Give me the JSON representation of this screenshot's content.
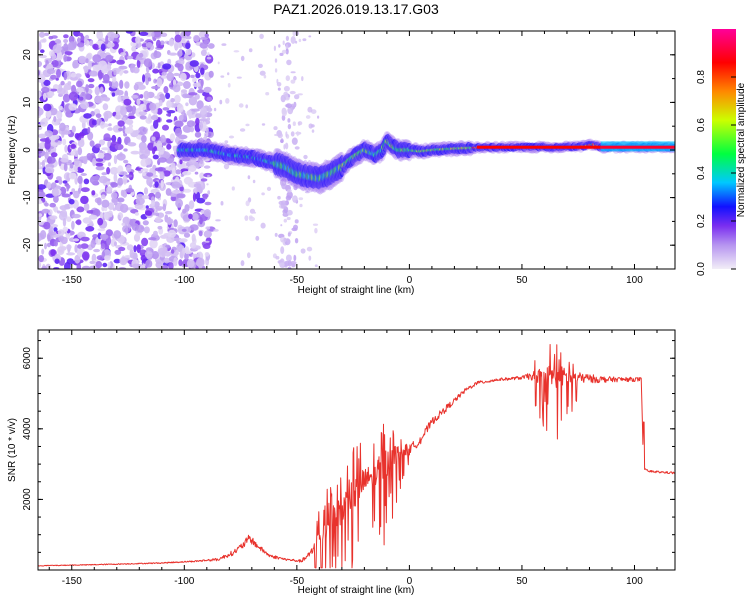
{
  "title": "PAZ1.2026.019.13.17.G03",
  "chart_data": [
    {
      "type": "heatmap",
      "name": "spectrogram",
      "xlabel": "Height of straight line (km)",
      "ylabel": "Frequency (Hz)",
      "xlim": [
        -165,
        118
      ],
      "ylim": [
        -25,
        25
      ],
      "xticks": [
        -150,
        -100,
        -50,
        0,
        50,
        100
      ],
      "yticks": [
        -20,
        -10,
        0,
        10,
        20
      ],
      "colorbar": {
        "label": "Normalized spectral amplitude",
        "range": [
          0,
          1
        ],
        "ticks": [
          0,
          0.2,
          0.4,
          0.6,
          0.8
        ],
        "tick_labels": [
          "0.0",
          "0.2",
          "0.4",
          "0.6",
          "0.8"
        ],
        "colormap": [
          "#f2eef7",
          "#7a2ef0",
          "#1111ff",
          "#00c8ff",
          "#00ff40",
          "#ccff00",
          "#ff8800",
          "#ff0000",
          "#ff0099"
        ]
      },
      "ridge": {
        "x": [
          -100,
          -90,
          -80,
          -70,
          -62,
          -55,
          -50,
          -45,
          -40,
          -35,
          -30,
          -25,
          -20,
          -15,
          -12,
          -10,
          -8,
          -5,
          0,
          5,
          10,
          20,
          30,
          40,
          50,
          60,
          70,
          78,
          82,
          85,
          90,
          100,
          110,
          118
        ],
        "freq": [
          0,
          0,
          -1,
          -1.5,
          -2.5,
          -3.5,
          -5,
          -5.5,
          -6,
          -5,
          -3.5,
          -1.5,
          0,
          -1,
          0,
          2,
          1,
          0,
          0,
          -0.3,
          0,
          0.3,
          0.5,
          0.6,
          0.6,
          0.6,
          0.6,
          0.8,
          1.2,
          0.5,
          0.6,
          0.6,
          0.6,
          0.6
        ]
      }
    },
    {
      "type": "line",
      "name": "snr",
      "xlabel": "Height of straight line (km)",
      "ylabel": "SNR (10 * v/v)",
      "xlim": [
        -165,
        118
      ],
      "ylim": [
        0,
        6800
      ],
      "xticks": [
        -150,
        -100,
        -50,
        0,
        50,
        100
      ],
      "yticks": [
        2000,
        4000,
        6000
      ],
      "color": "#e8322c",
      "series": [
        {
          "name": "SNR",
          "x": [
            -165,
            -140,
            -110,
            -95,
            -85,
            -78,
            -74,
            -71,
            -67,
            -62,
            -55,
            -48,
            -44,
            -40,
            -36,
            -32,
            -28,
            -24,
            -20,
            -16,
            -12,
            -8,
            -4,
            0,
            5,
            10,
            15,
            20,
            25,
            30,
            35,
            40,
            45,
            50,
            55,
            60,
            65,
            70,
            75,
            80,
            85,
            90,
            95,
            100,
            103,
            104,
            106,
            110,
            115,
            118
          ],
          "y": [
            120,
            150,
            200,
            250,
            300,
            500,
            700,
            900,
            650,
            400,
            300,
            250,
            450,
            900,
            1300,
            1500,
            1900,
            2200,
            2500,
            2700,
            2900,
            3200,
            3400,
            3400,
            3700,
            4200,
            4500,
            4800,
            5100,
            5300,
            5350,
            5400,
            5420,
            5450,
            5500,
            5500,
            5500,
            5480,
            5450,
            5430,
            5400,
            5400,
            5400,
            5400,
            5400,
            2900,
            2800,
            2780,
            2760,
            2750
          ],
          "noise": [
            20,
            25,
            30,
            40,
            80,
            150,
            200,
            250,
            150,
            100,
            60,
            80,
            200,
            700,
            800,
            900,
            900,
            900,
            800,
            600,
            900,
            700,
            400,
            300,
            250,
            200,
            200,
            150,
            120,
            100,
            100,
            80,
            80,
            100,
            250,
            600,
            700,
            450,
            300,
            250,
            200,
            150,
            130,
            120,
            120,
            60,
            60,
            60,
            60,
            60
          ]
        }
      ]
    }
  ]
}
